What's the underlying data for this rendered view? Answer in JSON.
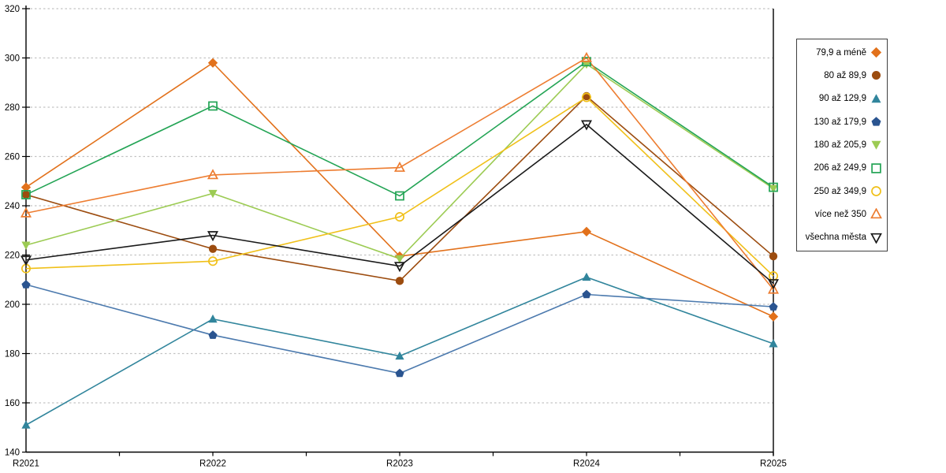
{
  "chart_data": {
    "type": "line",
    "title": "",
    "xlabel": "",
    "ylabel": "",
    "categories": [
      "R2021",
      "R2022",
      "R2023",
      "R2024",
      "R2025"
    ],
    "ylim": [
      140,
      320
    ],
    "ytick_step": 20,
    "grid": "horizontal-dashed",
    "grid_color": "#C3C3C3",
    "axis_color": "#000000",
    "legend_position": "right",
    "series": [
      {
        "name": "79,9 a méně",
        "marker": "diamond",
        "fill": "solid",
        "color": "#E2711B",
        "values": [
          247.5,
          298,
          219.5,
          229.5,
          195
        ]
      },
      {
        "name": "80 až 89,9",
        "marker": "circle",
        "fill": "solid",
        "color": "#9C4C0F",
        "values": [
          244.5,
          222.5,
          209.5,
          284.5,
          219.5
        ]
      },
      {
        "name": "90 až 129,9",
        "marker": "triangle-up",
        "fill": "solid",
        "color": "#31859C",
        "values": [
          151,
          194,
          179,
          211,
          184
        ]
      },
      {
        "name": "130 až 179,9",
        "marker": "pentagon",
        "fill": "solid",
        "color": "#2A5490",
        "lineColor": "#4C7AAE",
        "values": [
          208,
          187.5,
          172,
          204,
          199
        ]
      },
      {
        "name": "180 až 205,9",
        "marker": "triangle-down",
        "fill": "solid",
        "color": "#9CCB53",
        "values": [
          224,
          245,
          218.5,
          297.5,
          247
        ]
      },
      {
        "name": "206 až 249,9",
        "marker": "square",
        "fill": "hollow",
        "color": "#23A455",
        "values": [
          244.5,
          280.5,
          244,
          298.5,
          247.5
        ]
      },
      {
        "name": "250 až 349,9",
        "marker": "circle",
        "fill": "hollow",
        "color": "#F0C019",
        "values": [
          214.5,
          217.5,
          235.5,
          284,
          211.5
        ]
      },
      {
        "name": "více než 350",
        "marker": "triangle-up",
        "fill": "hollow",
        "color": "#ED7D31",
        "values": [
          237,
          252.5,
          255.5,
          300,
          206
        ]
      },
      {
        "name": "všechna města",
        "marker": "triangle-down",
        "fill": "hollow",
        "color": "#1A1A1A",
        "values": [
          218,
          228,
          215.5,
          273,
          208.5
        ]
      }
    ]
  }
}
